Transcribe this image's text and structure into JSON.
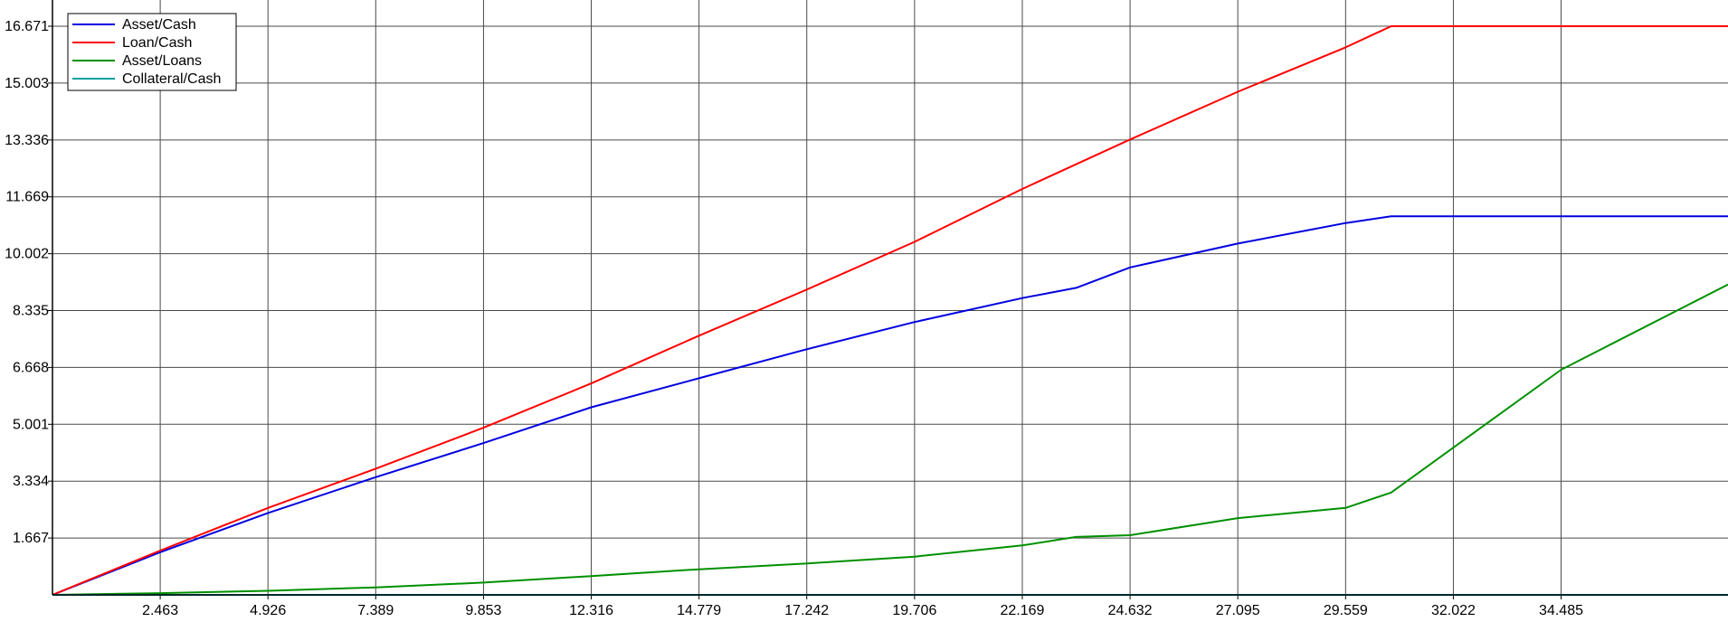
{
  "chart_data": {
    "type": "line",
    "title": "",
    "xlabel": "",
    "ylabel": "",
    "xlim": [
      0,
      38.3
    ],
    "ylim": [
      0,
      16.671
    ],
    "grid": true,
    "legend_position": "top-left",
    "x_ticks": [
      "2.463",
      "4.926",
      "7.389",
      "9.853",
      "12.316",
      "14.779",
      "17.242",
      "19.706",
      "22.169",
      "24.632",
      "27.095",
      "29.559",
      "32.022",
      "34.485"
    ],
    "y_ticks": [
      "1.667",
      "3.334",
      "5.001",
      "6.668",
      "8.335",
      "10.002",
      "11.669",
      "13.336",
      "15.003",
      "16.671"
    ],
    "series": [
      {
        "name": "Asset/Cash",
        "color": "#0000e0",
        "x": [
          0,
          2.463,
          4.926,
          7.389,
          9.853,
          12.316,
          14.779,
          17.242,
          19.706,
          22.169,
          23.4,
          24.632,
          27.095,
          29.559,
          30.6,
          38.3
        ],
        "y": [
          0,
          1.25,
          2.4,
          3.45,
          4.45,
          5.5,
          6.35,
          7.2,
          8.0,
          8.7,
          9.0,
          9.6,
          10.3,
          10.9,
          11.1,
          11.1
        ]
      },
      {
        "name": "Loan/Cash",
        "color": "#ff0000",
        "x": [
          0,
          2.463,
          4.926,
          7.389,
          9.853,
          12.316,
          14.779,
          17.242,
          19.706,
          22.169,
          24.632,
          27.095,
          29.559,
          30.6,
          38.3
        ],
        "y": [
          0,
          1.3,
          2.55,
          3.7,
          4.9,
          6.2,
          7.6,
          8.95,
          10.35,
          11.9,
          13.35,
          14.75,
          16.05,
          16.671,
          16.671
        ]
      },
      {
        "name": "Asset/Loans",
        "color": "#009000",
        "x": [
          0,
          2.463,
          4.926,
          7.389,
          9.853,
          12.316,
          14.779,
          17.242,
          19.706,
          22.169,
          23.4,
          24.632,
          27.095,
          29.559,
          30.6,
          34.485,
          38.3
        ],
        "y": [
          0,
          0.05,
          0.12,
          0.22,
          0.36,
          0.55,
          0.75,
          0.92,
          1.12,
          1.45,
          1.7,
          1.75,
          2.25,
          2.55,
          3.0,
          6.6,
          9.1
        ]
      },
      {
        "name": "Collateral/Cash",
        "color": "#00a0a0",
        "x": [
          0,
          38.3
        ],
        "y": [
          0,
          0
        ]
      }
    ]
  }
}
